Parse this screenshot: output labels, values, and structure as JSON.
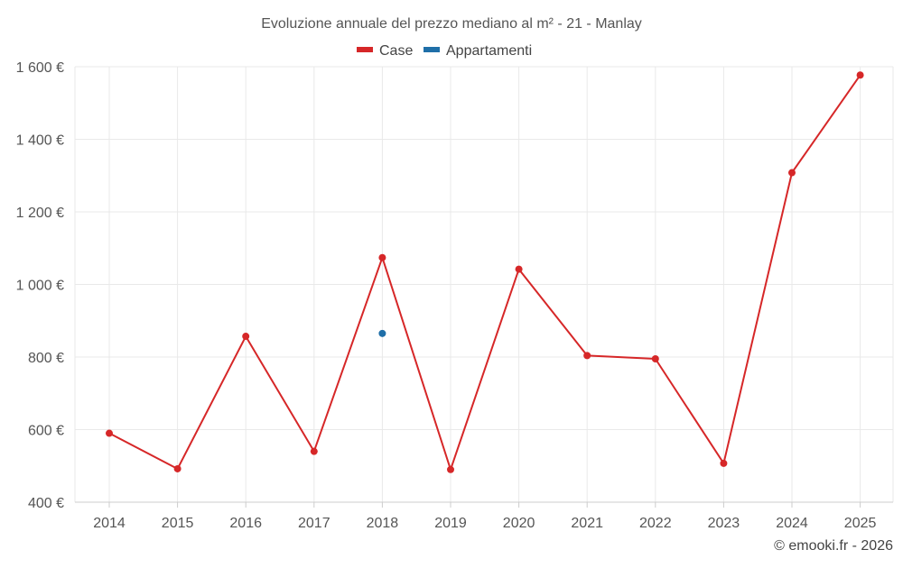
{
  "chart_data": {
    "type": "line",
    "title": "Evoluzione annuale del prezzo mediano al m² - 21 - Manlay",
    "xlabel": "",
    "ylabel": "",
    "categories": [
      "2014",
      "2015",
      "2016",
      "2017",
      "2018",
      "2019",
      "2020",
      "2021",
      "2022",
      "2023",
      "2024",
      "2025"
    ],
    "ylim": [
      400,
      1600
    ],
    "yticks": [
      400,
      600,
      800,
      1000,
      1200,
      1400,
      1600
    ],
    "ytick_labels": [
      "400 €",
      "600 €",
      "800 €",
      "1 000 €",
      "1 200 €",
      "1 400 €",
      "1 600 €"
    ],
    "grid": true,
    "legend_position": "top-center",
    "series": [
      {
        "name": "Case",
        "color": "#d62728",
        "values": [
          590,
          492,
          857,
          540,
          1074,
          490,
          1042,
          804,
          795,
          507,
          1308,
          1577
        ]
      },
      {
        "name": "Appartamenti",
        "color": "#1f6fa8",
        "values": [
          null,
          null,
          null,
          null,
          865,
          null,
          null,
          null,
          null,
          null,
          null,
          null
        ]
      }
    ]
  },
  "credit": "© emooki.fr - 2026"
}
